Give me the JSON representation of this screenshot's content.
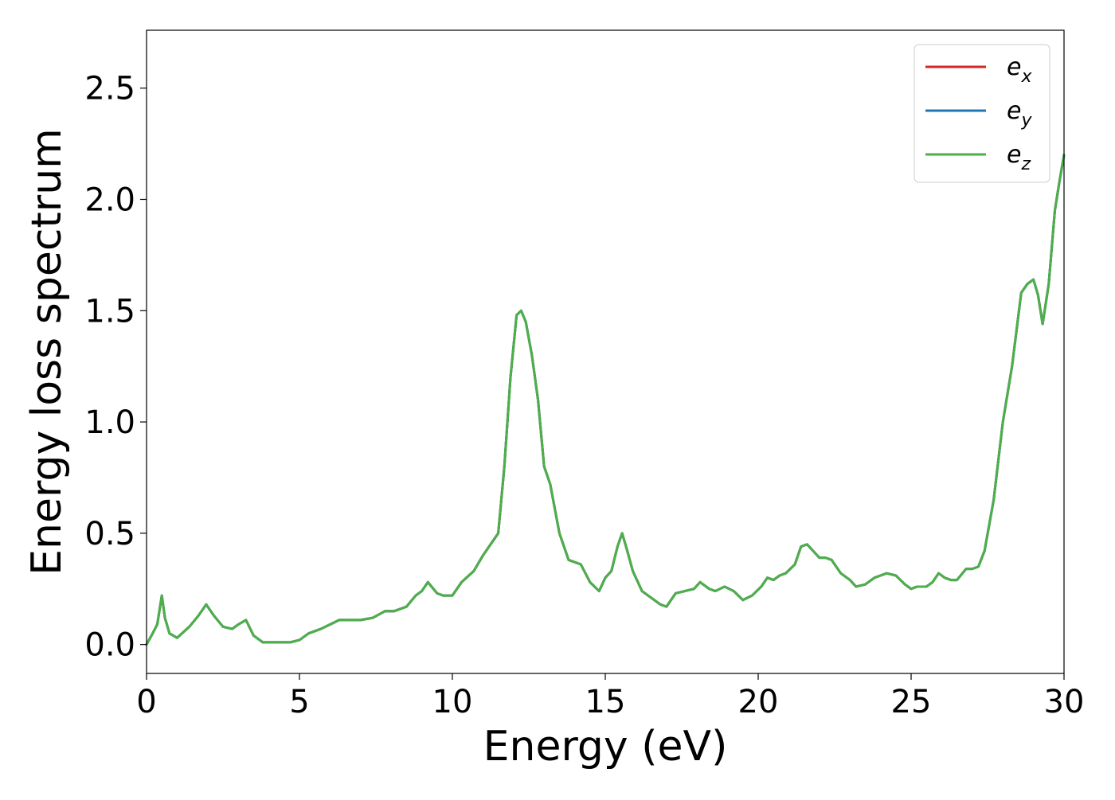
{
  "chart_data": {
    "type": "line",
    "title": "",
    "xlabel": "Energy (eV)",
    "ylabel": "Energy loss spectrum",
    "xlim": [
      0,
      30
    ],
    "ylim": [
      -0.13,
      2.76
    ],
    "xticks": [
      0,
      5,
      10,
      15,
      20,
      25,
      30
    ],
    "xtick_labels": [
      "0",
      "5",
      "10",
      "15",
      "20",
      "25",
      "30"
    ],
    "yticks": [
      0.0,
      0.5,
      1.0,
      1.5,
      2.0,
      2.5
    ],
    "ytick_labels": [
      "0.0",
      "0.5",
      "1.0",
      "1.5",
      "2.0",
      "2.5"
    ],
    "grid": false,
    "legend_position": "top-right",
    "x": [
      0,
      0.2,
      0.35,
      0.5,
      0.6,
      0.75,
      1.0,
      1.4,
      1.7,
      1.95,
      2.2,
      2.5,
      2.8,
      3.0,
      3.25,
      3.5,
      3.8,
      4.2,
      4.7,
      5.0,
      5.3,
      5.7,
      6.0,
      6.3,
      6.7,
      7.0,
      7.4,
      7.8,
      8.1,
      8.5,
      8.8,
      9.0,
      9.2,
      9.5,
      9.7,
      10.0,
      10.3,
      10.7,
      11.0,
      11.2,
      11.5,
      11.7,
      11.9,
      12.1,
      12.25,
      12.4,
      12.6,
      12.8,
      13.0,
      13.2,
      13.5,
      13.8,
      14.2,
      14.5,
      14.8,
      15.0,
      15.2,
      15.4,
      15.55,
      15.7,
      15.9,
      16.2,
      16.5,
      16.8,
      17.0,
      17.3,
      17.6,
      17.9,
      18.1,
      18.4,
      18.6,
      18.9,
      19.2,
      19.5,
      19.8,
      20.1,
      20.3,
      20.5,
      20.7,
      20.9,
      21.2,
      21.4,
      21.6,
      21.8,
      22.0,
      22.2,
      22.4,
      22.7,
      23.0,
      23.2,
      23.5,
      23.8,
      24.0,
      24.2,
      24.5,
      24.8,
      25.0,
      25.2,
      25.5,
      25.7,
      25.9,
      26.1,
      26.3,
      26.5,
      26.8,
      27.0,
      27.2,
      27.4,
      27.7,
      28.0,
      28.3,
      28.6,
      28.8,
      29.0,
      29.15,
      29.3,
      29.5,
      29.7,
      29.85,
      30.0
    ],
    "series": [
      {
        "name": "e_x",
        "color": "#d62728",
        "values": [
          0.0,
          0.05,
          0.09,
          0.22,
          0.12,
          0.05,
          0.03,
          0.08,
          0.13,
          0.18,
          0.13,
          0.08,
          0.07,
          0.09,
          0.11,
          0.04,
          0.01,
          0.01,
          0.01,
          0.02,
          0.05,
          0.07,
          0.09,
          0.11,
          0.11,
          0.11,
          0.12,
          0.15,
          0.15,
          0.17,
          0.22,
          0.24,
          0.28,
          0.23,
          0.22,
          0.22,
          0.28,
          0.33,
          0.4,
          0.44,
          0.5,
          0.8,
          1.2,
          1.48,
          1.5,
          1.45,
          1.3,
          1.1,
          0.8,
          0.72,
          0.5,
          0.38,
          0.36,
          0.28,
          0.24,
          0.3,
          0.33,
          0.44,
          0.5,
          0.43,
          0.33,
          0.24,
          0.21,
          0.18,
          0.17,
          0.23,
          0.24,
          0.25,
          0.28,
          0.25,
          0.24,
          0.26,
          0.24,
          0.2,
          0.22,
          0.26,
          0.3,
          0.29,
          0.31,
          0.32,
          0.36,
          0.44,
          0.45,
          0.42,
          0.39,
          0.39,
          0.38,
          0.32,
          0.29,
          0.26,
          0.27,
          0.3,
          0.31,
          0.32,
          0.31,
          0.27,
          0.25,
          0.26,
          0.26,
          0.28,
          0.32,
          0.3,
          0.29,
          0.29,
          0.34,
          0.34,
          0.35,
          0.42,
          0.65,
          1.0,
          1.25,
          1.58,
          1.62,
          1.64,
          1.57,
          1.44,
          1.62,
          1.95,
          2.08,
          2.2
        ]
      },
      {
        "name": "e_y",
        "color": "#1f77b4",
        "values": [
          0.0,
          0.05,
          0.09,
          0.22,
          0.12,
          0.05,
          0.03,
          0.08,
          0.13,
          0.18,
          0.13,
          0.08,
          0.07,
          0.09,
          0.11,
          0.04,
          0.01,
          0.01,
          0.01,
          0.02,
          0.05,
          0.07,
          0.09,
          0.11,
          0.11,
          0.11,
          0.12,
          0.15,
          0.15,
          0.17,
          0.22,
          0.24,
          0.28,
          0.23,
          0.22,
          0.22,
          0.28,
          0.33,
          0.4,
          0.44,
          0.5,
          0.8,
          1.2,
          1.48,
          1.5,
          1.45,
          1.3,
          1.1,
          0.8,
          0.72,
          0.5,
          0.38,
          0.36,
          0.28,
          0.24,
          0.3,
          0.33,
          0.44,
          0.5,
          0.43,
          0.33,
          0.24,
          0.21,
          0.18,
          0.17,
          0.23,
          0.24,
          0.25,
          0.28,
          0.25,
          0.24,
          0.26,
          0.24,
          0.2,
          0.22,
          0.26,
          0.3,
          0.29,
          0.31,
          0.32,
          0.36,
          0.44,
          0.45,
          0.42,
          0.39,
          0.39,
          0.38,
          0.32,
          0.29,
          0.26,
          0.27,
          0.3,
          0.31,
          0.32,
          0.31,
          0.27,
          0.25,
          0.26,
          0.26,
          0.28,
          0.32,
          0.3,
          0.29,
          0.29,
          0.34,
          0.34,
          0.35,
          0.42,
          0.65,
          1.0,
          1.25,
          1.58,
          1.62,
          1.64,
          1.57,
          1.44,
          1.62,
          1.95,
          2.08,
          2.2
        ]
      },
      {
        "name": "e_z",
        "color": "#4daf4a",
        "values": [
          0.0,
          0.05,
          0.09,
          0.22,
          0.12,
          0.05,
          0.03,
          0.08,
          0.13,
          0.18,
          0.13,
          0.08,
          0.07,
          0.09,
          0.11,
          0.04,
          0.01,
          0.01,
          0.01,
          0.02,
          0.05,
          0.07,
          0.09,
          0.11,
          0.11,
          0.11,
          0.12,
          0.15,
          0.15,
          0.17,
          0.22,
          0.24,
          0.28,
          0.23,
          0.22,
          0.22,
          0.28,
          0.33,
          0.4,
          0.44,
          0.5,
          0.8,
          1.2,
          1.48,
          1.5,
          1.45,
          1.3,
          1.1,
          0.8,
          0.72,
          0.5,
          0.38,
          0.36,
          0.28,
          0.24,
          0.3,
          0.33,
          0.44,
          0.5,
          0.43,
          0.33,
          0.24,
          0.21,
          0.18,
          0.17,
          0.23,
          0.24,
          0.25,
          0.28,
          0.25,
          0.24,
          0.26,
          0.24,
          0.2,
          0.22,
          0.26,
          0.3,
          0.29,
          0.31,
          0.32,
          0.36,
          0.44,
          0.45,
          0.42,
          0.39,
          0.39,
          0.38,
          0.32,
          0.29,
          0.26,
          0.27,
          0.3,
          0.31,
          0.32,
          0.31,
          0.27,
          0.25,
          0.26,
          0.26,
          0.28,
          0.32,
          0.3,
          0.29,
          0.29,
          0.34,
          0.34,
          0.35,
          0.42,
          0.65,
          1.0,
          1.25,
          1.58,
          1.62,
          1.64,
          1.57,
          1.44,
          1.62,
          1.95,
          2.08,
          2.2
        ]
      }
    ],
    "legend": [
      {
        "base": "e",
        "sub": "x"
      },
      {
        "base": "e",
        "sub": "y"
      },
      {
        "base": "e",
        "sub": "z"
      }
    ]
  }
}
